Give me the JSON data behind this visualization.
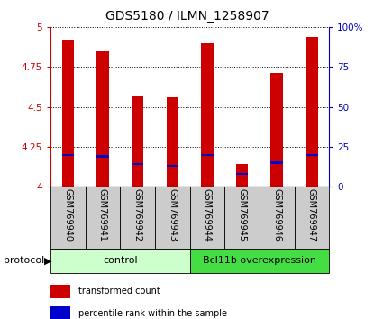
{
  "title": "GDS5180 / ILMN_1258907",
  "samples": [
    "GSM769940",
    "GSM769941",
    "GSM769942",
    "GSM769943",
    "GSM769944",
    "GSM769945",
    "GSM769946",
    "GSM769947"
  ],
  "transformed_counts": [
    4.92,
    4.85,
    4.57,
    4.56,
    4.9,
    4.14,
    4.71,
    4.94
  ],
  "percentile_ranks": [
    20,
    19,
    14,
    13,
    20,
    8,
    15,
    20
  ],
  "ylim_left": [
    4.0,
    5.0
  ],
  "ylim_right": [
    0,
    100
  ],
  "yticks_left": [
    4.0,
    4.25,
    4.5,
    4.75,
    5.0
  ],
  "ytick_labels_left": [
    "4",
    "4.25",
    "4.5",
    "4.75",
    "5"
  ],
  "yticks_right": [
    0,
    25,
    50,
    75,
    100
  ],
  "ytick_labels_right": [
    "0",
    "25",
    "50",
    "75",
    "100%"
  ],
  "groups": [
    {
      "label": "control",
      "indices": [
        0,
        1,
        2,
        3
      ],
      "color": "#ccffcc"
    },
    {
      "label": "Bcl11b overexpression",
      "indices": [
        4,
        5,
        6,
        7
      ],
      "color": "#44dd44"
    }
  ],
  "bar_color": "#cc0000",
  "percentile_color": "#0000cc",
  "bar_width": 0.35,
  "left_axis_color": "#cc0000",
  "right_axis_color": "#0000bb",
  "grid_color": "#000000",
  "protocol_label": "protocol",
  "legend_items": [
    {
      "label": "transformed count",
      "color": "#cc0000"
    },
    {
      "label": "percentile rank within the sample",
      "color": "#0000cc"
    }
  ],
  "sample_box_color": "#cccccc",
  "title_fontsize": 10,
  "tick_fontsize": 7.5,
  "label_fontsize": 7,
  "group_fontsize": 8
}
